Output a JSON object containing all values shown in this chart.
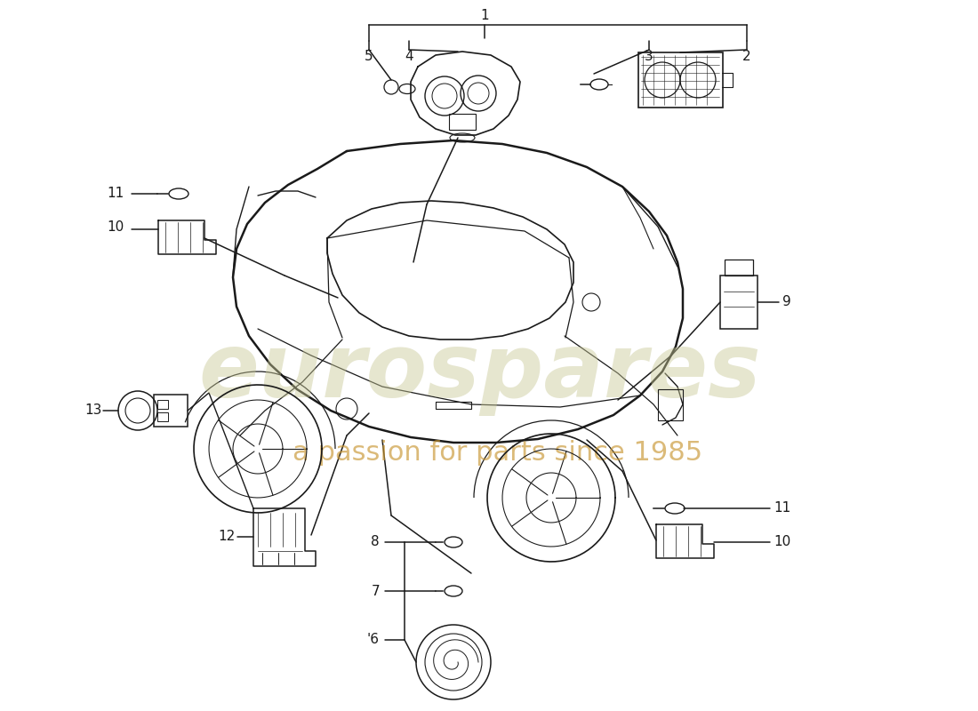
{
  "background_color": "#ffffff",
  "line_color": "#1a1a1a",
  "watermark_main": "eurospares",
  "watermark_sub": "a passion for parts since 1985",
  "wm_color_main": "#c8c896",
  "wm_color_sub": "#c89632"
}
